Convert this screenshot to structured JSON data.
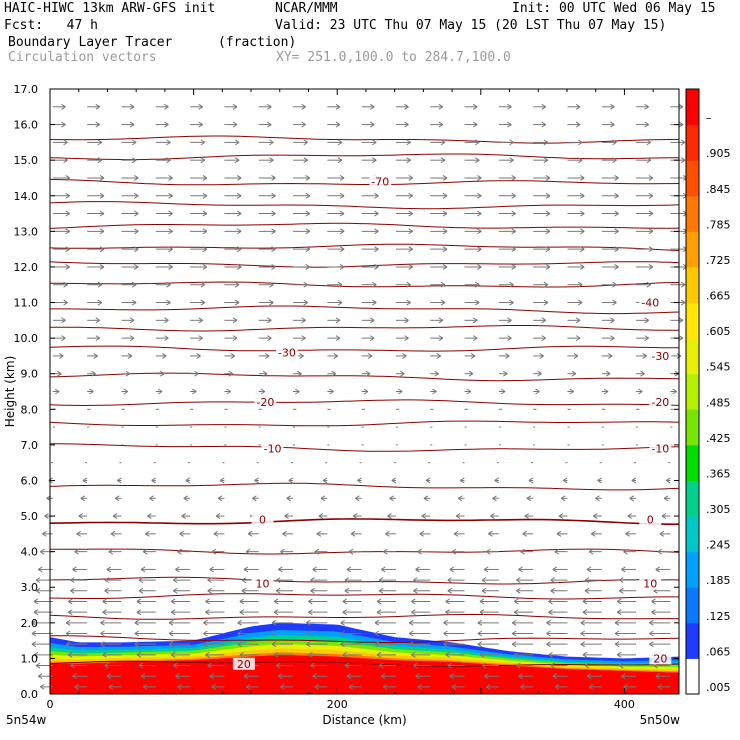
{
  "header": {
    "model": "HAIC-HIWC 13km ARW-GFS init",
    "org": "NCAR/MMM",
    "init": "Init: 00 UTC Wed 06 May 15",
    "fcst": "Fcst:   47 h",
    "valid": "Valid: 23 UTC Thu 07 May 15 (20 LST Thu 07 May 15)",
    "field": "Boundary Layer Tracer",
    "units": "(fraction)",
    "vectors": "Circulation vectors",
    "xy": "XY= 251.0,100.0 to 284.7,100.0"
  },
  "chart_data": {
    "type": "heatmap",
    "title": "Boundary Layer Tracer",
    "units": "(fraction)",
    "xlabel": "Distance (km)",
    "ylabel": "Height (km)",
    "xlim": [
      0,
      438
    ],
    "ylim": [
      0,
      17
    ],
    "x_ticks": [
      0,
      200,
      400
    ],
    "x_tick_labels": [
      "0",
      "200",
      "400"
    ],
    "y_ticks": [
      0,
      1,
      2,
      3,
      4,
      5,
      6,
      7,
      8,
      9,
      10,
      11,
      12,
      13,
      14,
      15,
      16,
      17
    ],
    "y_tick_labels": [
      "0.0",
      "1.0",
      "2.0",
      "3.0",
      "4.0",
      "5.0",
      "6.0",
      "7.0",
      "8.0",
      "9.0",
      "10.0",
      "11.0",
      "12.0",
      "13.0",
      "14.0",
      "15.0",
      "16.0",
      "17.0"
    ],
    "endpoint_labels": [
      "5n54w",
      "5n50w"
    ],
    "colorbar": {
      "labels": [
        ".005",
        ".065",
        ".125",
        ".185",
        ".245",
        ".305",
        ".365",
        ".425",
        ".485",
        ".545",
        ".605",
        ".665",
        ".725",
        ".785",
        ".845",
        ".905",
        "–"
      ],
      "colors": [
        "#ffffff",
        "#1e3cff",
        "#0a78ff",
        "#00a0ff",
        "#00c8c8",
        "#00d28c",
        "#00dc00",
        "#78e600",
        "#b4f000",
        "#e6f000",
        "#ffe600",
        "#ffc800",
        "#ffa000",
        "#ff7800",
        "#ff5000",
        "#ff2800",
        "#ff0000"
      ]
    },
    "tracer_profile": {
      "x": [
        0,
        20,
        50,
        100,
        140,
        160,
        200,
        240,
        280,
        320,
        360,
        400,
        438
      ],
      "top_km": [
        1.6,
        1.45,
        1.45,
        1.5,
        1.9,
        2.0,
        1.95,
        1.6,
        1.45,
        1.2,
        1.05,
        1.0,
        1.05
      ],
      "red_top_km": [
        0.85,
        0.85,
        0.9,
        0.95,
        1.05,
        1.1,
        1.05,
        0.95,
        0.9,
        0.8,
        0.7,
        0.65,
        0.6
      ]
    },
    "contour_labels": [
      {
        "text": "-70",
        "x": 230,
        "y": 14.4
      },
      {
        "text": "-40",
        "x": 418,
        "y": 11.0
      },
      {
        "text": "-30",
        "x": 165,
        "y": 9.6
      },
      {
        "text": "-30",
        "x": 425,
        "y": 9.5
      },
      {
        "text": "-20",
        "x": 150,
        "y": 8.2
      },
      {
        "text": "-20",
        "x": 425,
        "y": 8.2
      },
      {
        "text": "-10",
        "x": 155,
        "y": 6.9
      },
      {
        "text": "-10",
        "x": 425,
        "y": 6.9
      },
      {
        "text": "0",
        "x": 148,
        "y": 4.9
      },
      {
        "text": "0",
        "x": 418,
        "y": 4.9
      },
      {
        "text": "10",
        "x": 148,
        "y": 3.1
      },
      {
        "text": "10",
        "x": 418,
        "y": 3.1
      },
      {
        "text": "20",
        "x": 135,
        "y": 0.85
      },
      {
        "text": "20",
        "x": 425,
        "y": 1.0
      }
    ],
    "vectors": {
      "levels_km": [
        0.2,
        0.5,
        0.8,
        1.1,
        1.4,
        1.7,
        2.0,
        2.3,
        2.6,
        2.9,
        3.2,
        3.5,
        4.0,
        4.5,
        5.0,
        5.5,
        6.0,
        6.5,
        7.0,
        7.5,
        8.0,
        8.5,
        9.0,
        9.5,
        10.0,
        10.5,
        11.0,
        11.5,
        12.0,
        12.5,
        13.0,
        13.5,
        14.0,
        14.5,
        15.0,
        15.5,
        16.0,
        16.5
      ],
      "u_ms": [
        -3,
        -3.5,
        -4,
        -4.5,
        -5,
        -5,
        -5,
        -4.5,
        -4.5,
        -4,
        -4,
        -3.5,
        -3,
        -2.5,
        -2,
        -1.5,
        -1,
        -0.5,
        0.3,
        0.5,
        0.8,
        1.5,
        2,
        2.5,
        3,
        3,
        3.5,
        3.5,
        4,
        4,
        4,
        4,
        4,
        4,
        3.5,
        3.5,
        3,
        3
      ]
    }
  }
}
